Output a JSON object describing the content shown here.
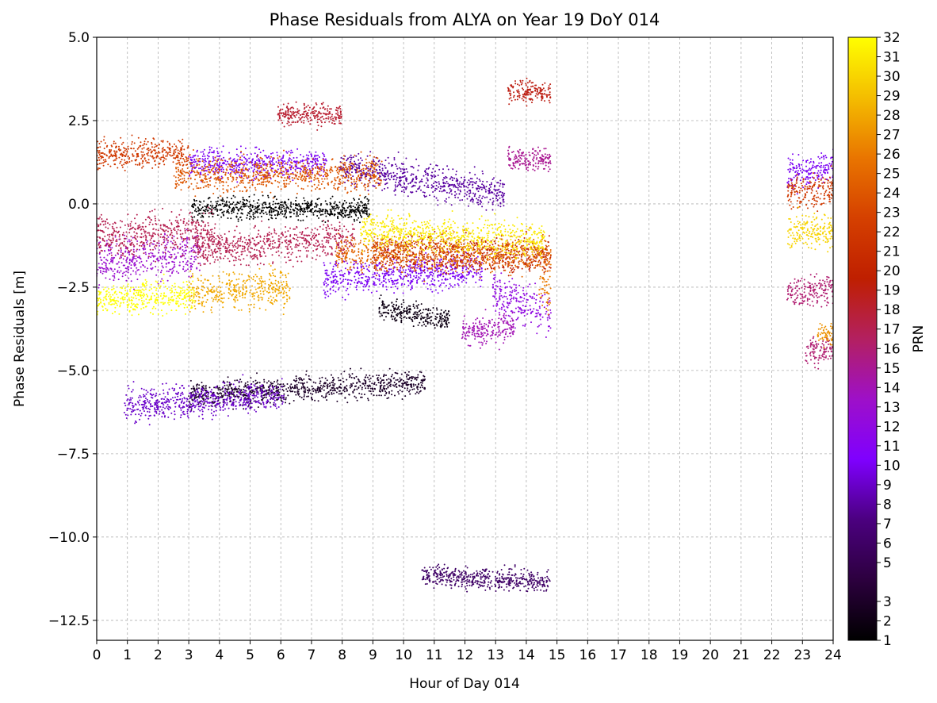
{
  "chart_data": {
    "type": "scatter",
    "title": "Phase Residuals from ALYA on Year 19 DoY 014",
    "xlabel": "Hour of Day 014",
    "ylabel": "Phase Residuals [m]",
    "xlim": [
      0,
      24
    ],
    "ylim": [
      -13.1,
      5.0
    ],
    "x_ticks": [
      0,
      1,
      2,
      3,
      4,
      5,
      6,
      7,
      8,
      9,
      10,
      11,
      12,
      13,
      14,
      15,
      16,
      17,
      18,
      19,
      20,
      21,
      22,
      23,
      24
    ],
    "x_tick_labels": [
      "0",
      "1",
      "2",
      "3",
      "4",
      "5",
      "6",
      "7",
      "8",
      "9",
      "10",
      "11",
      "12",
      "13",
      "14",
      "15",
      "16",
      "17",
      "18",
      "19",
      "20",
      "21",
      "22",
      "23",
      "24"
    ],
    "y_ticks": [
      5.0,
      2.5,
      0.0,
      -2.5,
      -5.0,
      -7.5,
      -10.0,
      -12.5
    ],
    "y_tick_labels": [
      "5.0",
      "2.5",
      "0.0",
      "−2.5",
      "−5.0",
      "−7.5",
      "−10.0",
      "−12.5"
    ],
    "grid": true,
    "marker": "small dots",
    "colorbar": {
      "label": "PRN",
      "colormap": "gnuplot",
      "range": [
        1,
        32
      ],
      "tick_labels": [
        "1",
        "2",
        "3",
        "5",
        "6",
        "7",
        "8",
        "9",
        "10",
        "11",
        "12",
        "13",
        "14",
        "15",
        "16",
        "17",
        "18",
        "19",
        "20",
        "21",
        "22",
        "23",
        "24",
        "25",
        "26",
        "27",
        "28",
        "29",
        "30",
        "31",
        "32"
      ]
    },
    "series": [
      {
        "prn": 1,
        "x_start": 3.1,
        "x_end": 8.9,
        "mean": -0.15,
        "slope": 0.0,
        "spread": 0.55
      },
      {
        "prn": 2,
        "x_start": 9.2,
        "x_end": 11.5,
        "mean": -3.3,
        "slope": -0.15,
        "spread": 0.55
      },
      {
        "prn": 3,
        "x_start": 3.0,
        "x_end": 10.7,
        "mean": -5.55,
        "slope": 0.05,
        "spread": 0.65
      },
      {
        "prn": 6,
        "x_start": 10.6,
        "x_end": 14.8,
        "mean": -11.25,
        "slope": -0.05,
        "spread": 0.55
      },
      {
        "prn": 8,
        "x_start": 7.9,
        "x_end": 13.3,
        "mean": 0.7,
        "slope": -0.15,
        "spread": 0.85
      },
      {
        "prn": 9,
        "x_start": 0.9,
        "x_end": 6.1,
        "mean": -5.9,
        "slope": 0.05,
        "spread": 0.8
      },
      {
        "prn": 10,
        "x_start": 3.0,
        "x_end": 7.5,
        "mean": 1.2,
        "slope": 0.0,
        "spread": 0.75
      },
      {
        "prn": 10,
        "x_start": 7.4,
        "x_end": 12.6,
        "mean": -2.1,
        "slope": 0.05,
        "spread": 0.9
      },
      {
        "prn": 10,
        "x_start": 22.5,
        "x_end": 24.0,
        "mean": 1.0,
        "slope": 0.1,
        "spread": 0.9
      },
      {
        "prn": 12,
        "x_start": 12.9,
        "x_end": 14.8,
        "mean": -3.0,
        "slope": -0.3,
        "spread": 1.1
      },
      {
        "prn": 13,
        "x_start": 0.0,
        "x_end": 3.4,
        "mean": -1.6,
        "slope": 0.1,
        "spread": 1.1
      },
      {
        "prn": 14,
        "x_start": 11.9,
        "x_end": 13.6,
        "mean": -3.8,
        "slope": 0.1,
        "spread": 0.8
      },
      {
        "prn": 15,
        "x_start": 13.4,
        "x_end": 14.8,
        "mean": 1.35,
        "slope": 0.0,
        "spread": 0.6
      },
      {
        "prn": 16,
        "x_start": 22.5,
        "x_end": 24.0,
        "mean": -2.6,
        "slope": 0.05,
        "spread": 0.8
      },
      {
        "prn": 16,
        "x_start": 23.1,
        "x_end": 24.0,
        "mean": -4.4,
        "slope": 0.1,
        "spread": 0.7
      },
      {
        "prn": 17,
        "x_start": 0.0,
        "x_end": 3.8,
        "mean": -0.9,
        "slope": 0.05,
        "spread": 1.1
      },
      {
        "prn": 17,
        "x_start": 3.2,
        "x_end": 8.4,
        "mean": -1.2,
        "slope": 0.05,
        "spread": 0.9
      },
      {
        "prn": 18,
        "x_start": 5.9,
        "x_end": 8.0,
        "mean": 2.7,
        "slope": 0.0,
        "spread": 0.55
      },
      {
        "prn": 19,
        "x_start": 13.4,
        "x_end": 14.8,
        "mean": 3.35,
        "slope": 0.0,
        "spread": 0.6
      },
      {
        "prn": 20,
        "x_start": 9.0,
        "x_end": 14.8,
        "mean": -1.5,
        "slope": -0.02,
        "spread": 0.9
      },
      {
        "prn": 22,
        "x_start": 0.0,
        "x_end": 3.0,
        "mean": 1.5,
        "slope": 0.0,
        "spread": 0.7
      },
      {
        "prn": 22,
        "x_start": 22.5,
        "x_end": 24.0,
        "mean": 0.4,
        "slope": 0.1,
        "spread": 0.8
      },
      {
        "prn": 24,
        "x_start": 2.5,
        "x_end": 9.3,
        "mean": 0.9,
        "slope": 0.0,
        "spread": 0.9
      },
      {
        "prn": 25,
        "x_start": 7.8,
        "x_end": 14.8,
        "mean": -1.5,
        "slope": 0.0,
        "spread": 0.9
      },
      {
        "prn": 26,
        "x_start": 14.4,
        "x_end": 14.8,
        "mean": -2.5,
        "slope": 0.0,
        "spread": 1.2
      },
      {
        "prn": 27,
        "x_start": 23.5,
        "x_end": 24.0,
        "mean": -3.9,
        "slope": 0.0,
        "spread": 0.6
      },
      {
        "prn": 28,
        "x_start": 3.0,
        "x_end": 6.3,
        "mean": -2.6,
        "slope": 0.05,
        "spread": 0.9
      },
      {
        "prn": 30,
        "x_start": 22.5,
        "x_end": 24.0,
        "mean": -0.8,
        "slope": 0.0,
        "spread": 0.9
      },
      {
        "prn": 31,
        "x_start": 8.6,
        "x_end": 14.6,
        "mean": -0.95,
        "slope": -0.05,
        "spread": 0.9
      },
      {
        "prn": 32,
        "x_start": 0.0,
        "x_end": 3.2,
        "mean": -2.8,
        "slope": 0.05,
        "spread": 0.8
      }
    ]
  }
}
